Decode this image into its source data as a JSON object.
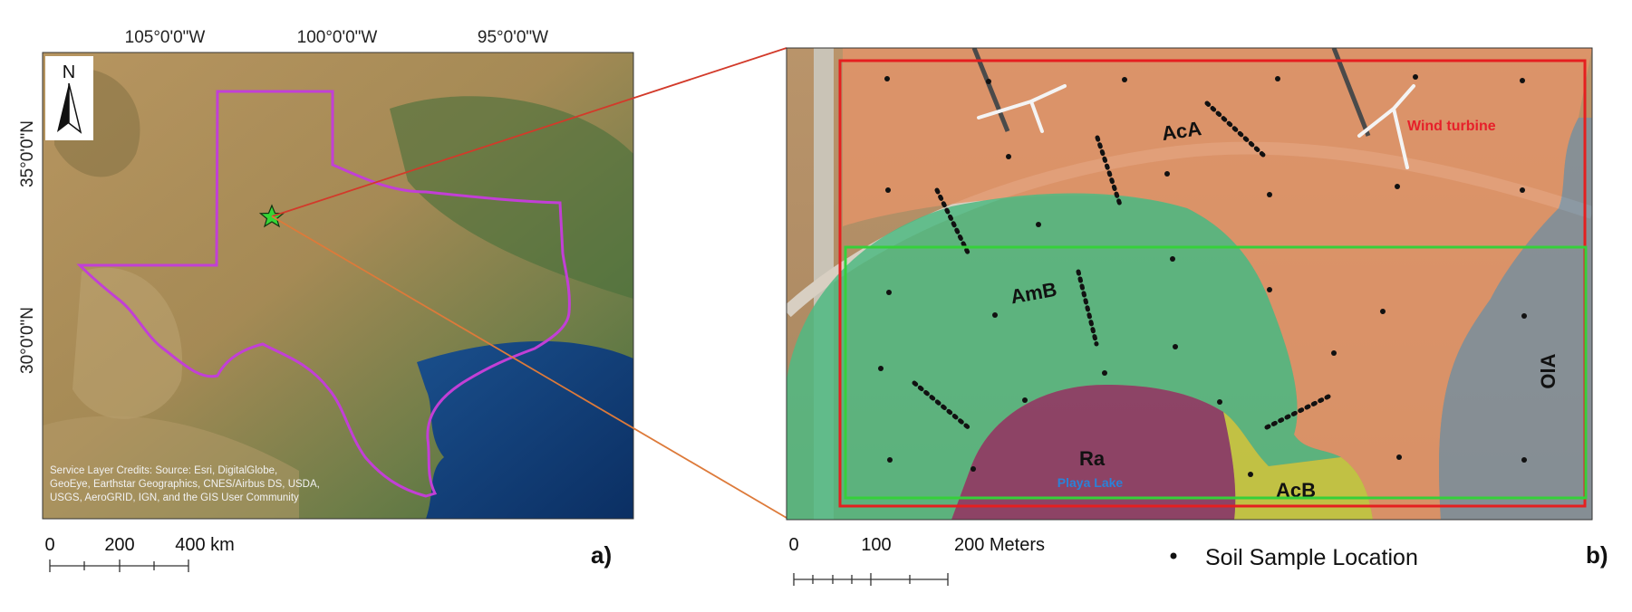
{
  "panel_a": {
    "lon_labels": [
      "105°0'0\"W",
      "100°0'0\"W",
      "95°0'0\"W"
    ],
    "lat_labels": [
      "35°0'0\"N",
      "30°0'0\"N"
    ],
    "north_label": "N",
    "credits": [
      "Service Layer Credits: Source: Esri, DigitalGlobe,",
      "GeoEye, Earthstar Geographics, CNES/Airbus DS, USDA,",
      "USGS, AeroGRID, IGN, and the GIS User Community"
    ],
    "scale_labels": [
      "0",
      "200",
      "400 km"
    ],
    "panel_label": "a)"
  },
  "panel_b": {
    "soil_units": [
      "AcA",
      "AmB",
      "Ra",
      "AcB",
      "OlA"
    ],
    "playa_label": "Playa Lake",
    "wind_label": "Wind turbine",
    "scale_labels": [
      "0",
      "100",
      "200 Meters"
    ],
    "legend_label": "Soil Sample Location",
    "panel_label": "b)"
  },
  "colors": {
    "outline_magenta": "#c23fd6",
    "frame_red": "#e51f1f",
    "frame_green": "#36d03a",
    "soil_AcA": "#e39469",
    "soil_AmB": "#4fba82",
    "soil_Ra": "#8a3c66",
    "soil_AcB": "#c6cb3f",
    "soil_OlA": "#7f8f9e",
    "wind_label_red": "#e6202a",
    "playa_label_blue": "#2a82d8"
  }
}
